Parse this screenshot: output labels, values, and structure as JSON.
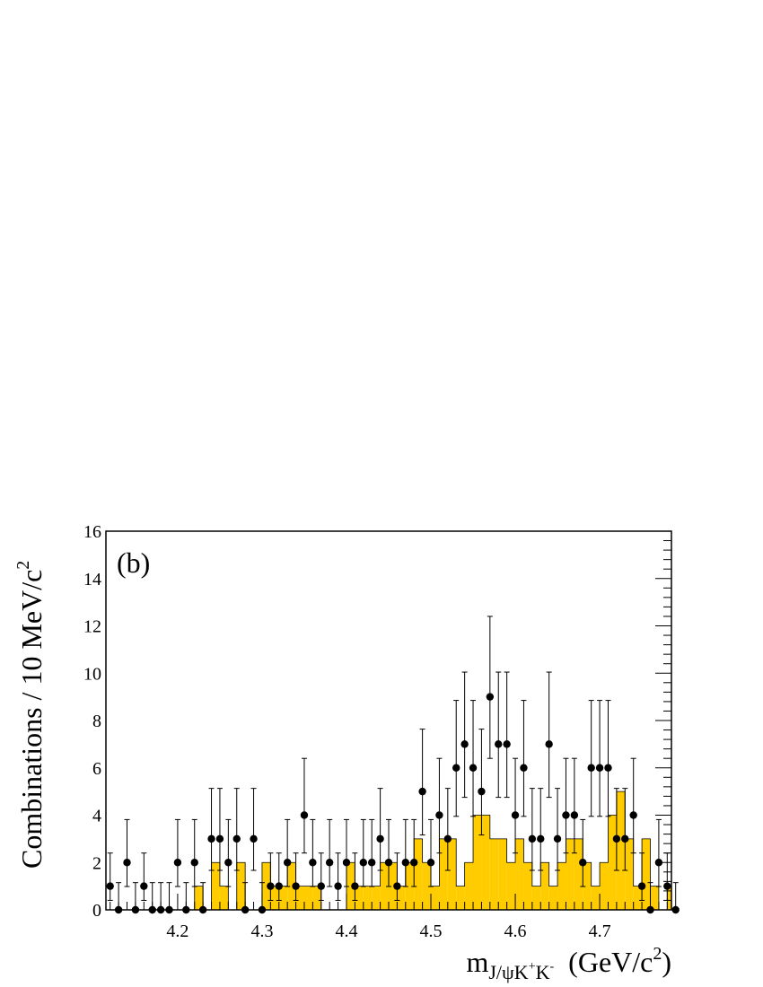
{
  "chart_data": {
    "type": "bar",
    "panel_label": "(b)",
    "xlabel": {
      "main": "m",
      "subscript": "J/ψK",
      "sub_sup1": "+",
      "sub_mid": "K",
      "sub_sup2": "-",
      "units_open": "(GeV/c",
      "units_sup": "2",
      "units_close": ")"
    },
    "ylabel": {
      "main": "Combinations / 10 MeV/c",
      "sup": "2"
    },
    "xlim": [
      4.115,
      4.785
    ],
    "ylim": [
      0,
      16
    ],
    "x_ticks": [
      "4.2",
      "4.3",
      "4.4",
      "4.5",
      "4.6",
      "4.7"
    ],
    "y_ticks": [
      "0",
      "2",
      "4",
      "6",
      "8",
      "10",
      "12",
      "14",
      "16"
    ],
    "bin_width": 0.01,
    "histogram": {
      "name": "",
      "fill_color": "#ffcc00",
      "bin_low_edges": [
        4.12,
        4.13,
        4.14,
        4.15,
        4.16,
        4.17,
        4.18,
        4.19,
        4.2,
        4.21,
        4.22,
        4.23,
        4.24,
        4.25,
        4.26,
        4.27,
        4.28,
        4.29,
        4.3,
        4.31,
        4.32,
        4.33,
        4.34,
        4.35,
        4.36,
        4.37,
        4.38,
        4.39,
        4.4,
        4.41,
        4.42,
        4.43,
        4.44,
        4.45,
        4.46,
        4.47,
        4.48,
        4.49,
        4.5,
        4.51,
        4.52,
        4.53,
        4.54,
        4.55,
        4.56,
        4.57,
        4.58,
        4.59,
        4.6,
        4.61,
        4.62,
        4.63,
        4.64,
        4.65,
        4.66,
        4.67,
        4.68,
        4.69,
        4.7,
        4.71,
        4.72,
        4.73,
        4.74,
        4.75,
        4.76,
        4.77,
        4.78
      ],
      "values": [
        0,
        0,
        0,
        0,
        0,
        0,
        0,
        0,
        0,
        0,
        1,
        0,
        2,
        1,
        0,
        2,
        0,
        0,
        2,
        1,
        1,
        2,
        1,
        1,
        1,
        0,
        0,
        0,
        2,
        1,
        1,
        1,
        2,
        2,
        1,
        2,
        3,
        2,
        1,
        3,
        3,
        1,
        2,
        4,
        4,
        3,
        3,
        2,
        3,
        2,
        1,
        2,
        1,
        2,
        3,
        3,
        2,
        1,
        2,
        4,
        5,
        3,
        1,
        3,
        1,
        0,
        1
      ]
    },
    "data_points": {
      "name": "",
      "color": "#000000",
      "x": [
        4.12,
        4.13,
        4.14,
        4.15,
        4.16,
        4.17,
        4.18,
        4.19,
        4.2,
        4.21,
        4.22,
        4.23,
        4.24,
        4.25,
        4.26,
        4.27,
        4.28,
        4.29,
        4.3,
        4.31,
        4.32,
        4.33,
        4.34,
        4.35,
        4.36,
        4.37,
        4.38,
        4.39,
        4.4,
        4.41,
        4.42,
        4.43,
        4.44,
        4.45,
        4.46,
        4.47,
        4.48,
        4.49,
        4.5,
        4.51,
        4.52,
        4.53,
        4.54,
        4.55,
        4.56,
        4.57,
        4.58,
        4.59,
        4.6,
        4.61,
        4.62,
        4.63,
        4.64,
        4.65,
        4.66,
        4.67,
        4.68,
        4.69,
        4.7,
        4.71,
        4.72,
        4.73,
        4.74,
        4.75,
        4.76,
        4.77,
        4.78,
        4.79
      ],
      "y": [
        1,
        0,
        2,
        0,
        1,
        0,
        0,
        0,
        2,
        0,
        2,
        0,
        3,
        3,
        2,
        3,
        0,
        3,
        0,
        1,
        1,
        2,
        1,
        4,
        2,
        1,
        2,
        1,
        2,
        1,
        2,
        2,
        3,
        2,
        1,
        2,
        2,
        5,
        2,
        4,
        3,
        6,
        7,
        6,
        5,
        9,
        7,
        7,
        4,
        6,
        3,
        3,
        7,
        3,
        4,
        4,
        2,
        6,
        6,
        6,
        3,
        3,
        4,
        1,
        0,
        2,
        1,
        0
      ]
    }
  }
}
